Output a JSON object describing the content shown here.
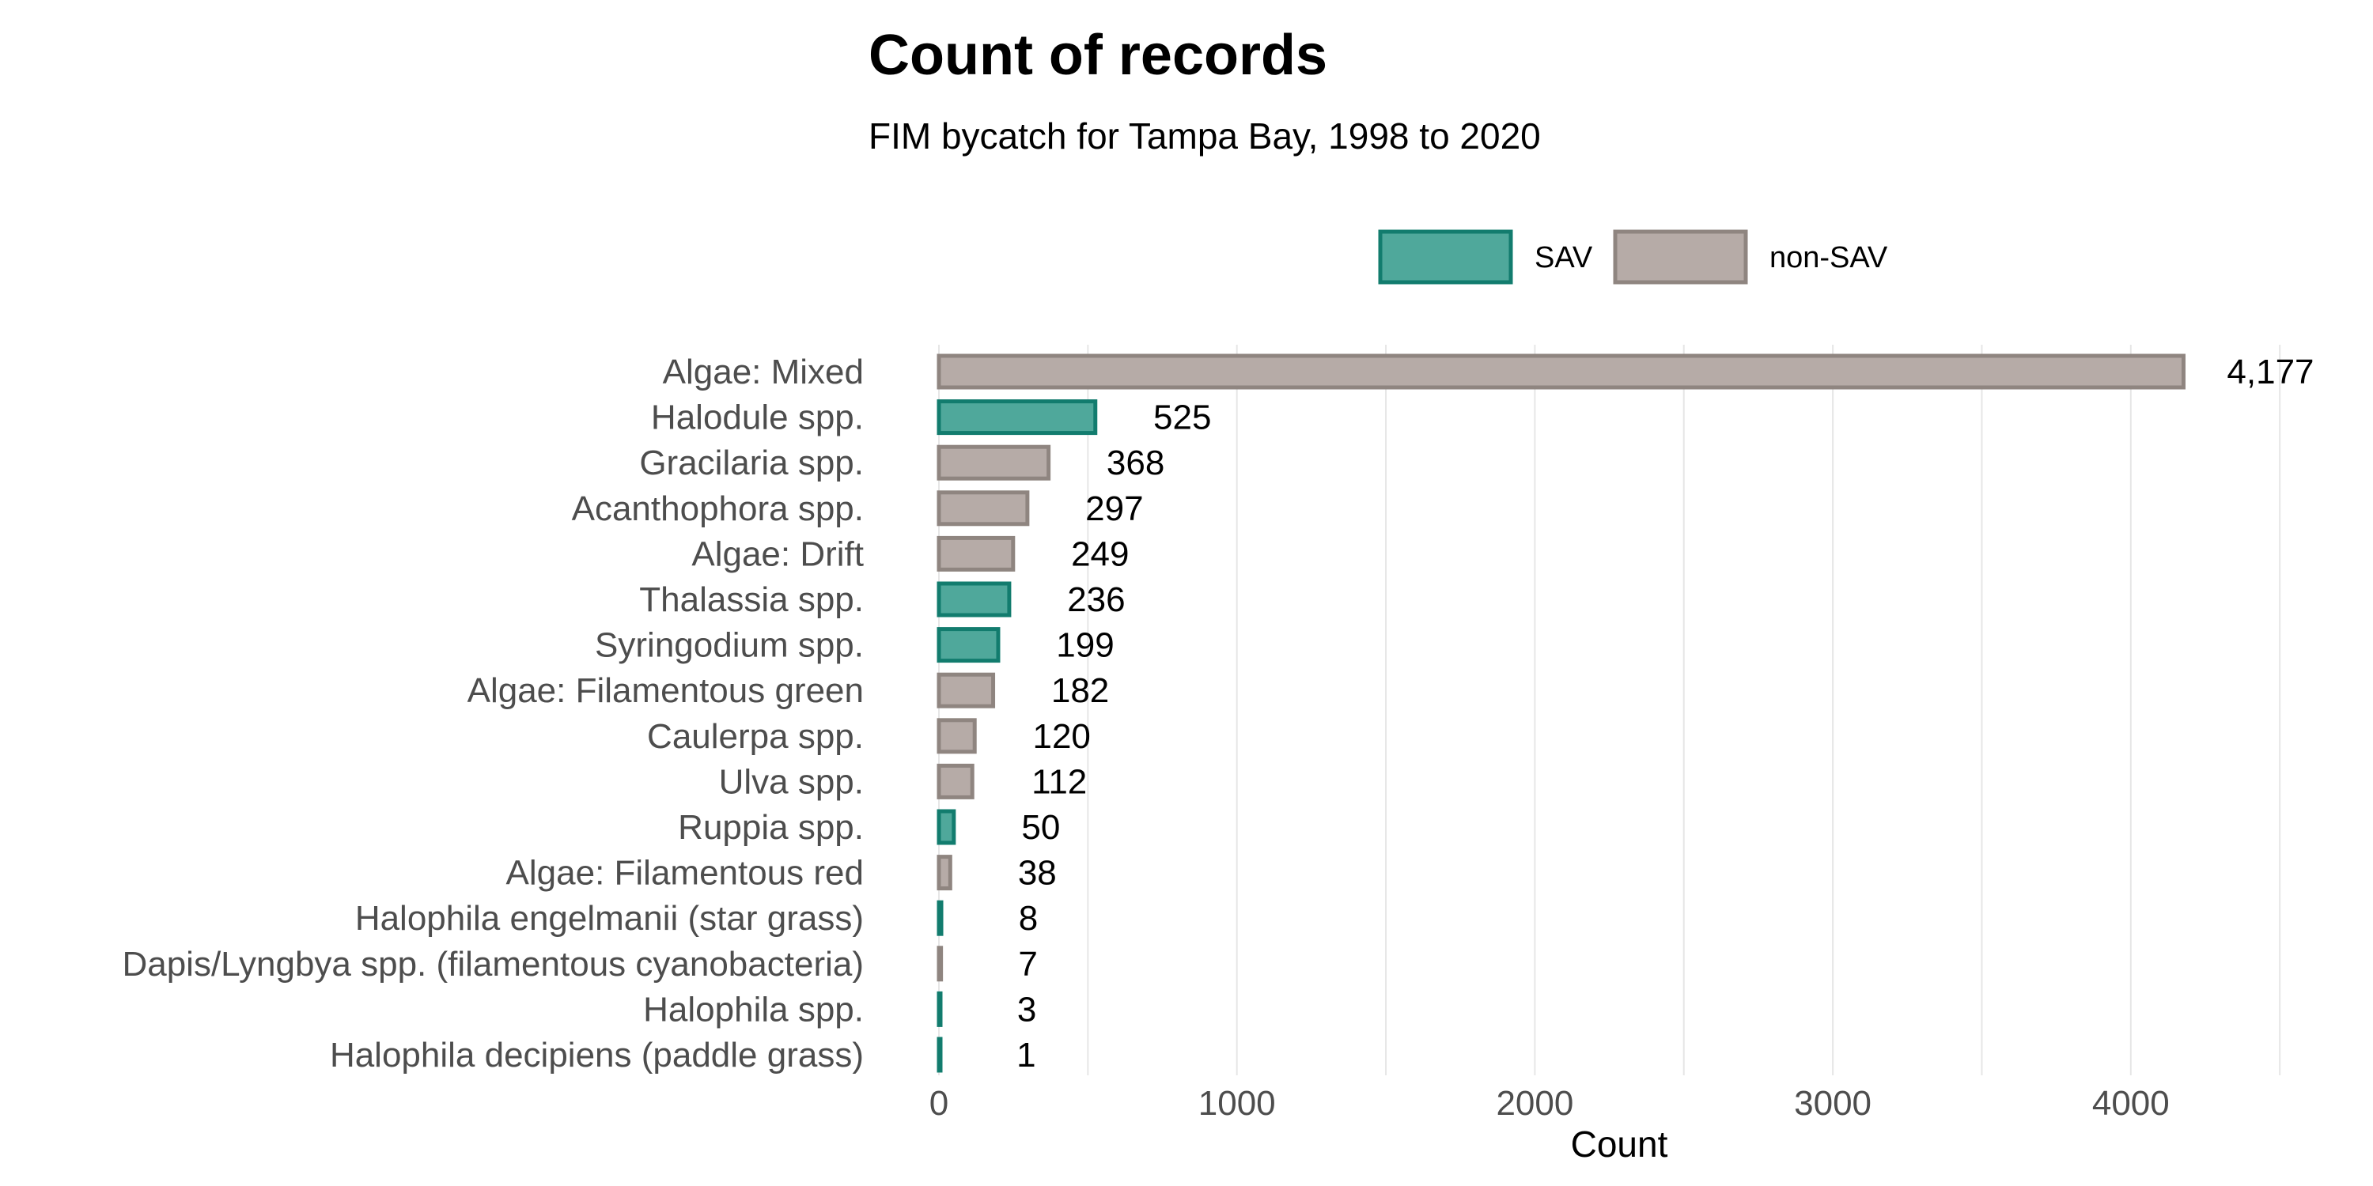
{
  "chart_data": {
    "type": "bar",
    "orientation": "horizontal",
    "title": "Count of records",
    "subtitle": "FIM bycatch for Tampa Bay, 1998 to 2020",
    "xlabel": "Count",
    "ylabel": "",
    "xlim": [
      0,
      4500
    ],
    "xticks": [
      0,
      1000,
      2000,
      3000,
      4000
    ],
    "grid": true,
    "legend_position": "top",
    "legend": [
      {
        "key": "SAV",
        "label": "SAV",
        "fill": "#4fa89b",
        "stroke": "#127c6e"
      },
      {
        "key": "non-SAV",
        "label": "non-SAV",
        "fill": "#b6aba7",
        "stroke": "#8f8580"
      }
    ],
    "categories": [
      {
        "label": "Algae: Mixed",
        "value": 4177,
        "value_label": "4,177",
        "group": "non-SAV"
      },
      {
        "label": "Halodule spp.",
        "value": 525,
        "value_label": "525",
        "group": "SAV"
      },
      {
        "label": "Gracilaria spp.",
        "value": 368,
        "value_label": "368",
        "group": "non-SAV"
      },
      {
        "label": "Acanthophora spp.",
        "value": 297,
        "value_label": "297",
        "group": "non-SAV"
      },
      {
        "label": "Algae: Drift",
        "value": 249,
        "value_label": "249",
        "group": "non-SAV"
      },
      {
        "label": "Thalassia spp.",
        "value": 236,
        "value_label": "236",
        "group": "SAV"
      },
      {
        "label": "Syringodium spp.",
        "value": 199,
        "value_label": "199",
        "group": "SAV"
      },
      {
        "label": "Algae: Filamentous green",
        "value": 182,
        "value_label": "182",
        "group": "non-SAV"
      },
      {
        "label": "Caulerpa spp.",
        "value": 120,
        "value_label": "120",
        "group": "non-SAV"
      },
      {
        "label": "Ulva spp.",
        "value": 112,
        "value_label": "112",
        "group": "non-SAV"
      },
      {
        "label": "Ruppia spp.",
        "value": 50,
        "value_label": "50",
        "group": "SAV"
      },
      {
        "label": "Algae: Filamentous red",
        "value": 38,
        "value_label": "38",
        "group": "non-SAV"
      },
      {
        "label": "Halophila engelmanii  (star grass)",
        "value": 8,
        "value_label": "8",
        "group": "SAV"
      },
      {
        "label": "Dapis/Lyngbya spp. (filamentous cyanobacteria)",
        "value": 7,
        "value_label": "7",
        "group": "non-SAV"
      },
      {
        "label": "Halophila spp.",
        "value": 3,
        "value_label": "3",
        "group": "SAV"
      },
      {
        "label": "Halophila decipiens (paddle grass)",
        "value": 1,
        "value_label": "1",
        "group": "SAV"
      }
    ]
  }
}
